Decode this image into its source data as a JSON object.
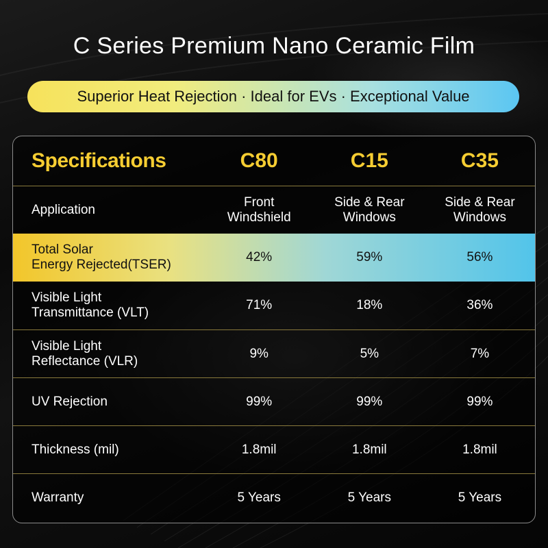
{
  "title": "C Series Premium Nano Ceramic Film",
  "banner": "Superior Heat Rejection · Ideal for EVs · Exceptional Value",
  "colors": {
    "accent_yellow": "#f6cd32",
    "banner_start": "#f6e25b",
    "banner_end": "#5bc6f2",
    "background": "#000000"
  },
  "table": {
    "header": {
      "label": "Specifications",
      "columns": [
        "C80",
        "C15",
        "C35"
      ]
    },
    "rows": [
      {
        "label": "Application",
        "values": [
          "Front\nWindshield",
          "Side & Rear\nWindows",
          "Side & Rear\nWindows"
        ]
      },
      {
        "label": "Total Solar\nEnergy Rejected(TSER)",
        "values": [
          "42%",
          "59%",
          "56%"
        ]
      },
      {
        "label": "Visible Light\nTransmittance (VLT)",
        "values": [
          "71%",
          "18%",
          "36%"
        ]
      },
      {
        "label": "Visible Light\nReflectance (VLR)",
        "values": [
          "9%",
          "5%",
          "7%"
        ]
      },
      {
        "label": "UV Rejection",
        "values": [
          "99%",
          "99%",
          "99%"
        ]
      },
      {
        "label": "Thickness (mil)",
        "values": [
          "1.8mil",
          "1.8mil",
          "1.8mil"
        ]
      },
      {
        "label": "Warranty",
        "values": [
          "5 Years",
          "5 Years",
          "5 Years"
        ]
      }
    ]
  }
}
